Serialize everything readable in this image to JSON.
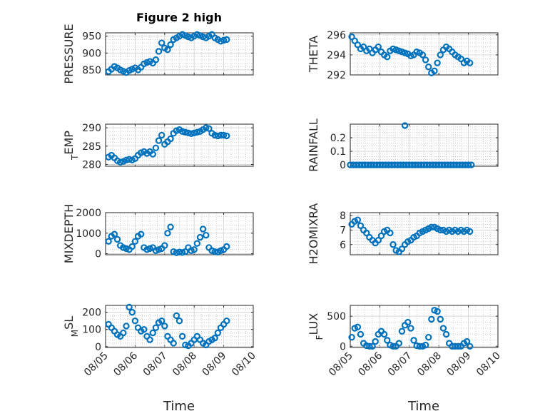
{
  "figure": {
    "title": "Figure 2 high",
    "x_label": "Time",
    "x_ticks": [
      {
        "day": 0,
        "label": "08/05"
      },
      {
        "day": 1,
        "label": "08/06"
      },
      {
        "day": 2,
        "label": "08/07"
      },
      {
        "day": 3,
        "label": "08/08"
      },
      {
        "day": 4,
        "label": "08/09"
      },
      {
        "day": 5,
        "label": "08/10"
      }
    ],
    "marker_color": "#0072BD"
  },
  "chart_data": [
    {
      "type": "scatter",
      "id": "pressure",
      "ylabel": "PRESSURE",
      "ylim": [
        835,
        960
      ],
      "yticks": [
        850,
        900,
        950
      ],
      "grid": true,
      "x": [
        0.1,
        0.2,
        0.3,
        0.4,
        0.5,
        0.6,
        0.7,
        0.8,
        0.9,
        1.0,
        1.1,
        1.2,
        1.3,
        1.4,
        1.5,
        1.6,
        1.7,
        1.8,
        1.9,
        2.0,
        2.1,
        2.2,
        2.3,
        2.4,
        2.5,
        2.6,
        2.7,
        2.8,
        2.9,
        3.0,
        3.1,
        3.2,
        3.3,
        3.4,
        3.5,
        3.6,
        3.7,
        3.8,
        3.9,
        4.0,
        4.1
      ],
      "y": [
        845,
        852,
        860,
        856,
        850,
        846,
        842,
        848,
        852,
        856,
        850,
        858,
        868,
        872,
        875,
        870,
        880,
        905,
        930,
        915,
        910,
        925,
        940,
        945,
        950,
        955,
        952,
        948,
        945,
        950,
        955,
        952,
        948,
        945,
        950,
        955,
        945,
        940,
        935,
        938,
        940
      ]
    },
    {
      "type": "scatter",
      "id": "theta",
      "ylabel": "THETA",
      "ylim": [
        292,
        296.2
      ],
      "yticks": [
        292,
        294,
        296
      ],
      "grid": true,
      "x": [
        0.05,
        0.15,
        0.25,
        0.35,
        0.45,
        0.55,
        0.65,
        0.75,
        0.85,
        0.95,
        1.05,
        1.15,
        1.25,
        1.35,
        1.45,
        1.55,
        1.65,
        1.75,
        1.85,
        1.95,
        2.05,
        2.15,
        2.25,
        2.35,
        2.45,
        2.55,
        2.65,
        2.75,
        2.85,
        2.95,
        3.05,
        3.15,
        3.25,
        3.35,
        3.45,
        3.55,
        3.65,
        3.75,
        3.85,
        3.95,
        4.05
      ],
      "y": [
        295.8,
        295.4,
        295.0,
        294.6,
        294.8,
        294.4,
        294.6,
        294.2,
        294.5,
        294.8,
        294.3,
        294.0,
        293.8,
        294.4,
        294.6,
        294.5,
        294.4,
        294.3,
        294.2,
        294.1,
        293.9,
        294.0,
        294.3,
        294.2,
        294.0,
        293.5,
        292.8,
        292.2,
        292.4,
        293.2,
        294.0,
        294.5,
        294.8,
        294.6,
        294.3,
        294.0,
        293.8,
        293.6,
        293.2,
        293.4,
        293.2
      ]
    },
    {
      "type": "scatter",
      "id": "air_temp",
      "ylabel": "AIR_TEMP",
      "ylim": [
        279.5,
        291
      ],
      "yticks": [
        280,
        285,
        290
      ],
      "grid": true,
      "x": [
        0.1,
        0.2,
        0.3,
        0.4,
        0.5,
        0.6,
        0.7,
        0.8,
        0.9,
        1.0,
        1.1,
        1.2,
        1.3,
        1.4,
        1.5,
        1.6,
        1.7,
        1.8,
        1.9,
        2.0,
        2.1,
        2.2,
        2.3,
        2.4,
        2.5,
        2.6,
        2.7,
        2.8,
        2.9,
        3.0,
        3.1,
        3.2,
        3.3,
        3.4,
        3.5,
        3.6,
        3.7,
        3.8,
        3.9,
        4.0,
        4.1
      ],
      "y": [
        282,
        282.5,
        281.8,
        281,
        280.6,
        280.8,
        281.2,
        281.4,
        281.2,
        281.6,
        282.5,
        283.2,
        283.5,
        283,
        283.5,
        282.8,
        284.5,
        286.5,
        288,
        285.5,
        286.2,
        287,
        288.5,
        289.2,
        289.5,
        289.0,
        288.8,
        288.6,
        288.4,
        288.6,
        288.8,
        289.0,
        289.5,
        290.0,
        289.8,
        288.5,
        288.0,
        287.8,
        288.0,
        288.0,
        287.8
      ]
    },
    {
      "type": "scatter",
      "id": "rainfall",
      "ylabel": "RAINFALL",
      "ylim": [
        -0.01,
        0.3
      ],
      "yticks": [
        0,
        0.1,
        0.2
      ],
      "grid": true,
      "x": [
        0.0,
        0.1,
        0.2,
        0.3,
        0.4,
        0.5,
        0.6,
        0.7,
        0.8,
        0.9,
        1.0,
        1.1,
        1.2,
        1.3,
        1.4,
        1.5,
        1.6,
        1.7,
        1.8,
        1.9,
        2.0,
        2.1,
        2.2,
        2.3,
        2.4,
        2.5,
        2.6,
        2.7,
        2.8,
        2.9,
        3.0,
        3.1,
        3.2,
        3.3,
        3.4,
        3.5,
        3.6,
        3.7,
        3.8,
        3.9,
        4.0,
        4.1,
        1.85
      ],
      "y": [
        0,
        0,
        0,
        0,
        0,
        0,
        0,
        0,
        0,
        0,
        0,
        0,
        0,
        0,
        0,
        0,
        0,
        0,
        0,
        0,
        0,
        0,
        0,
        0,
        0,
        0,
        0,
        0,
        0,
        0,
        0,
        0,
        0,
        0,
        0,
        0,
        0,
        0,
        0,
        0,
        0,
        0,
        0.29
      ]
    },
    {
      "type": "scatter",
      "id": "mixdepth",
      "ylabel": "MIXDEPTH",
      "ylim": [
        -50,
        2000
      ],
      "yticks": [
        0,
        1000,
        2000
      ],
      "grid": true,
      "x": [
        0.1,
        0.2,
        0.3,
        0.4,
        0.5,
        0.6,
        0.7,
        0.8,
        0.9,
        1.0,
        1.1,
        1.2,
        1.3,
        1.4,
        1.5,
        1.6,
        1.7,
        1.8,
        1.9,
        2.0,
        2.1,
        2.2,
        2.3,
        2.4,
        2.5,
        2.6,
        2.7,
        2.8,
        2.9,
        3.0,
        3.1,
        3.2,
        3.3,
        3.4,
        3.5,
        3.6,
        3.7,
        3.8,
        3.9,
        4.0,
        4.1
      ],
      "y": [
        600,
        850,
        950,
        700,
        400,
        300,
        250,
        200,
        350,
        600,
        850,
        950,
        300,
        200,
        250,
        300,
        150,
        200,
        250,
        400,
        1000,
        1300,
        100,
        50,
        80,
        60,
        100,
        300,
        150,
        200,
        500,
        800,
        1200,
        900,
        300,
        150,
        100,
        80,
        150,
        200,
        350
      ]
    },
    {
      "type": "scatter",
      "id": "h2omixra",
      "ylabel": "H2OMIXRA",
      "ylim": [
        5.3,
        8.2
      ],
      "yticks": [
        6,
        7,
        8
      ],
      "grid": true,
      "x": [
        0.05,
        0.15,
        0.25,
        0.35,
        0.45,
        0.55,
        0.65,
        0.75,
        0.85,
        0.95,
        1.05,
        1.15,
        1.25,
        1.35,
        1.45,
        1.55,
        1.65,
        1.75,
        1.85,
        1.95,
        2.05,
        2.15,
        2.25,
        2.35,
        2.45,
        2.55,
        2.65,
        2.75,
        2.85,
        2.95,
        3.05,
        3.15,
        3.25,
        3.35,
        3.45,
        3.55,
        3.65,
        3.75,
        3.85,
        3.95,
        4.05
      ],
      "y": [
        7.4,
        7.6,
        7.7,
        7.3,
        7.0,
        6.8,
        6.5,
        6.3,
        6.1,
        6.3,
        6.6,
        6.9,
        7.0,
        6.8,
        6.0,
        5.6,
        5.5,
        5.7,
        6.0,
        6.2,
        6.3,
        6.5,
        6.6,
        6.8,
        6.9,
        7.0,
        7.1,
        7.2,
        7.2,
        7.1,
        7.0,
        7.0,
        6.9,
        7.0,
        6.9,
        7.0,
        6.9,
        7.0,
        6.9,
        7.0,
        6.9
      ]
    },
    {
      "type": "scatter",
      "id": "terr_msl",
      "ylabel": "TERR_MSL",
      "ylim": [
        -5,
        240
      ],
      "yticks": [
        0,
        100,
        200
      ],
      "grid": true,
      "x": [
        0.1,
        0.2,
        0.3,
        0.4,
        0.5,
        0.6,
        0.7,
        0.8,
        0.9,
        1.0,
        1.1,
        1.2,
        1.3,
        1.4,
        1.5,
        1.6,
        1.7,
        1.8,
        1.9,
        2.0,
        2.1,
        2.2,
        2.3,
        2.4,
        2.5,
        2.6,
        2.7,
        2.8,
        2.9,
        3.0,
        3.1,
        3.2,
        3.3,
        3.4,
        3.5,
        3.6,
        3.7,
        3.8,
        3.9,
        4.0,
        4.1
      ],
      "y": [
        130,
        110,
        90,
        70,
        60,
        80,
        120,
        230,
        200,
        150,
        110,
        90,
        100,
        60,
        40,
        80,
        110,
        140,
        150,
        120,
        60,
        40,
        20,
        180,
        150,
        60,
        10,
        5,
        20,
        40,
        60,
        40,
        20,
        10,
        30,
        40,
        50,
        80,
        110,
        130,
        150
      ]
    },
    {
      "type": "scatter",
      "id": "sun_flux",
      "ylabel": "SUN_FLUX",
      "ylim": [
        -20,
        680
      ],
      "yticks": [
        0,
        500
      ],
      "grid": true,
      "x": [
        0.05,
        0.15,
        0.25,
        0.35,
        0.45,
        0.55,
        0.65,
        0.75,
        0.85,
        0.95,
        1.05,
        1.15,
        1.25,
        1.35,
        1.45,
        1.55,
        1.65,
        1.75,
        1.85,
        1.95,
        2.05,
        2.15,
        2.25,
        2.35,
        2.45,
        2.55,
        2.65,
        2.75,
        2.85,
        2.95,
        3.05,
        3.15,
        3.25,
        3.35,
        3.45,
        3.55,
        3.65,
        3.75,
        3.85,
        3.95,
        4.05
      ],
      "y": [
        150,
        300,
        320,
        200,
        50,
        10,
        0,
        0,
        80,
        200,
        250,
        200,
        100,
        20,
        0,
        0,
        50,
        250,
        350,
        400,
        300,
        100,
        10,
        0,
        0,
        20,
        150,
        450,
        600,
        580,
        450,
        300,
        200,
        50,
        0,
        0,
        0,
        0,
        50,
        80,
        0
      ]
    }
  ]
}
